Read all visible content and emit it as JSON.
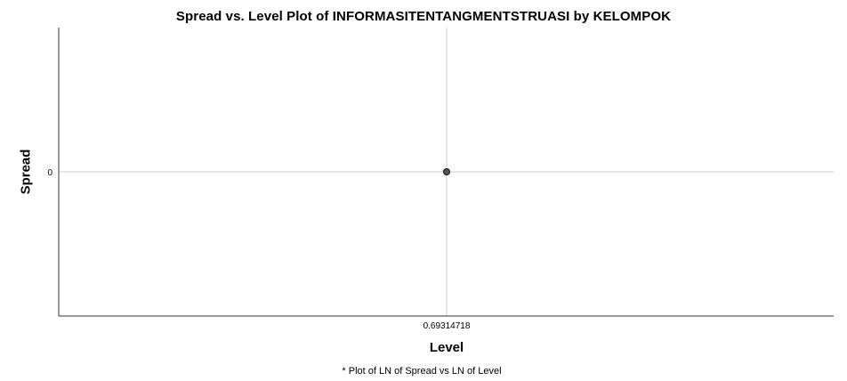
{
  "chart_data": {
    "type": "scatter",
    "title": "Spread vs. Level Plot of INFORMASITENTANGMENTSTRUASI by KELOMPOK",
    "xlabel": "Level",
    "ylabel": "Spread",
    "footnote": "* Plot of LN of Spread vs LN of Level",
    "x_ticks": [
      "0.69314718"
    ],
    "y_ticks": [
      "0"
    ],
    "points": [
      {
        "x": 0.69314718,
        "y": 0
      }
    ],
    "grid": true,
    "colors": {
      "point_fill": "#555555",
      "point_stroke": "#111111",
      "grid": "#cccccc",
      "axis": "#333333"
    }
  }
}
